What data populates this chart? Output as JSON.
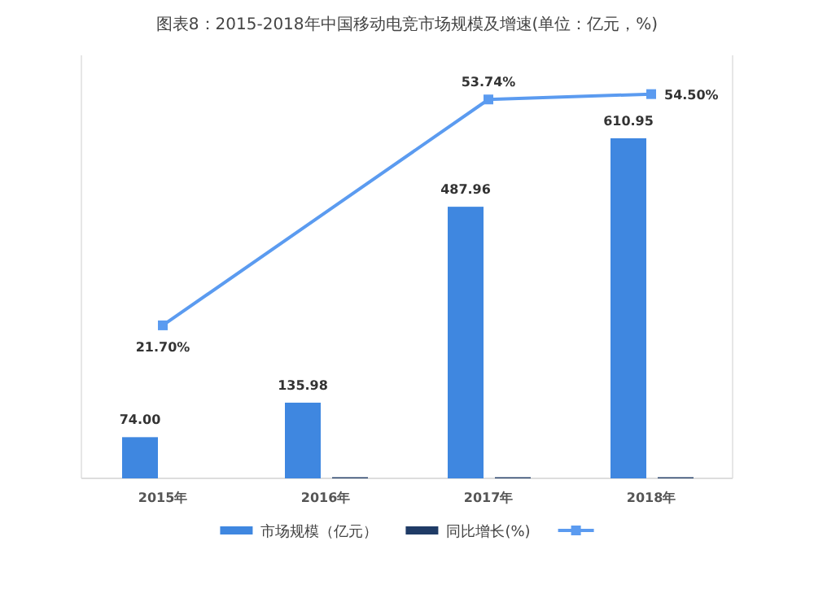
{
  "chart_data": {
    "type": "bar",
    "title": "图表8：2015-2018年中国移动电竞市场规模及增速(单位：亿元，%)",
    "categories": [
      "2015年",
      "2016年",
      "2017年",
      "2018年"
    ],
    "ylim": [
      0,
      760
    ],
    "y2lim": [
      0,
      60
    ],
    "tick_labels": "x",
    "legend": "bottom",
    "series": [
      {
        "name": "市场规模（亿元）",
        "color": "#3f87e0",
        "values": [
          74.0,
          135.98,
          487.96,
          610.95
        ],
        "value_labels": [
          "74.00",
          "135.98",
          "487.96",
          "610.95"
        ]
      },
      {
        "name": "同比增长(%)",
        "color": "#1f3b66",
        "values": [
          null,
          2,
          2,
          2
        ]
      },
      {
        "type": "line",
        "axis": "y2",
        "color": "#5b9bf0",
        "marker": "square",
        "x": [
          "2015年",
          "2017年",
          "2018年"
        ],
        "values": [
          21.7,
          53.74,
          54.5
        ],
        "value_labels": [
          "21.70%",
          "53.74%",
          "54.50%"
        ]
      }
    ]
  }
}
